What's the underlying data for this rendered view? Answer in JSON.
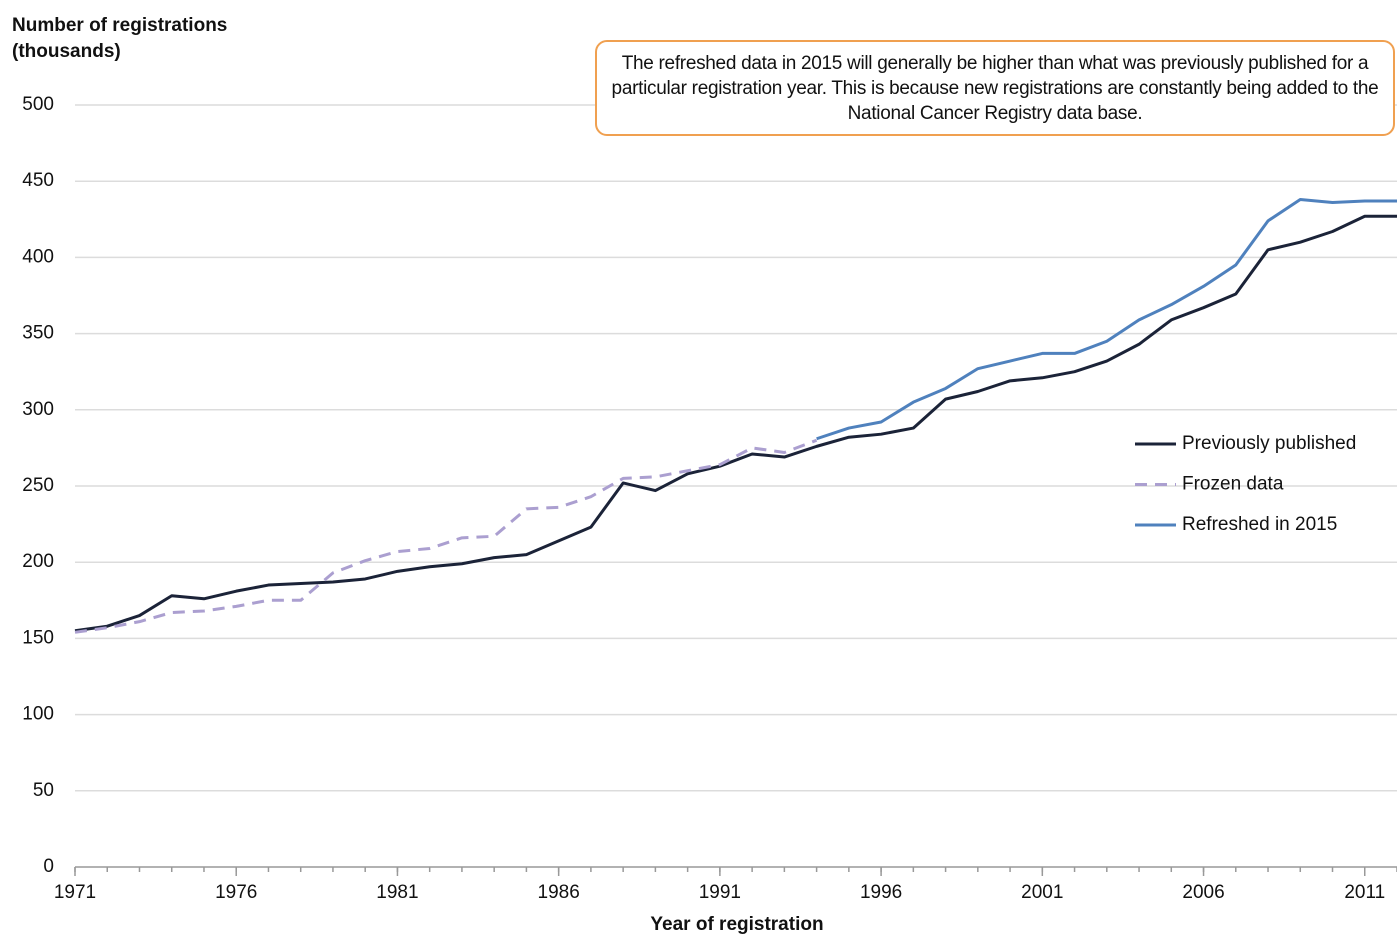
{
  "chart_data": {
    "type": "line",
    "y_label": [
      "Number of registrations",
      "(thousands)"
    ],
    "x_label": "Year of registration",
    "annotation": "The refreshed data in 2015 will generally be higher than what was previously published for a particular registration year. This is because new registrations are constantly being added to the National Cancer Registry data base.",
    "x": [
      1971,
      1972,
      1973,
      1974,
      1975,
      1976,
      1977,
      1978,
      1979,
      1980,
      1981,
      1982,
      1983,
      1984,
      1985,
      1986,
      1987,
      1988,
      1989,
      1990,
      1991,
      1992,
      1993,
      1994,
      1995,
      1996,
      1997,
      1998,
      1999,
      2000,
      2001,
      2002,
      2003,
      2004,
      2005,
      2006,
      2007,
      2008,
      2009,
      2010,
      2011,
      2012
    ],
    "series": [
      {
        "name": "Previously published",
        "color": "#1b2338",
        "style": "solid",
        "values": [
          155,
          158,
          165,
          178,
          176,
          181,
          185,
          186,
          187,
          189,
          194,
          197,
          199,
          203,
          205,
          214,
          223,
          252,
          247,
          258,
          263,
          271,
          269,
          276,
          282,
          284,
          288,
          307,
          312,
          319,
          321,
          325,
          332,
          343,
          359,
          367,
          376,
          405,
          410,
          417,
          427,
          427
        ]
      },
      {
        "name": "Frozen data",
        "color": "#ab9fd0",
        "style": "dashed",
        "values": [
          154,
          157,
          161,
          167,
          168,
          171,
          175,
          175,
          193,
          201,
          207,
          209,
          216,
          217,
          235,
          236,
          243,
          255,
          256,
          260,
          264,
          275,
          272,
          280,
          null,
          null,
          null,
          null,
          null,
          null,
          null,
          null,
          null,
          null,
          null,
          null,
          null,
          null,
          null,
          null,
          null,
          null
        ]
      },
      {
        "name": "Refreshed in 2015",
        "color": "#4f81bd",
        "style": "solid",
        "values": [
          null,
          null,
          null,
          null,
          null,
          null,
          null,
          null,
          null,
          null,
          null,
          null,
          null,
          null,
          null,
          null,
          null,
          null,
          null,
          null,
          null,
          null,
          null,
          281,
          288,
          292,
          305,
          314,
          327,
          332,
          337,
          337,
          345,
          359,
          369,
          381,
          395,
          424,
          438,
          436,
          437,
          437
        ]
      }
    ],
    "xlim": [
      1971,
      2012
    ],
    "xticks": [
      1971,
      1976,
      1981,
      1986,
      1991,
      1996,
      2001,
      2006,
      2011
    ],
    "ylim": [
      0,
      500
    ],
    "yticks": [
      0,
      50,
      100,
      150,
      200,
      250,
      300,
      350,
      400,
      450,
      500
    ],
    "grid": true,
    "legend": "right"
  }
}
